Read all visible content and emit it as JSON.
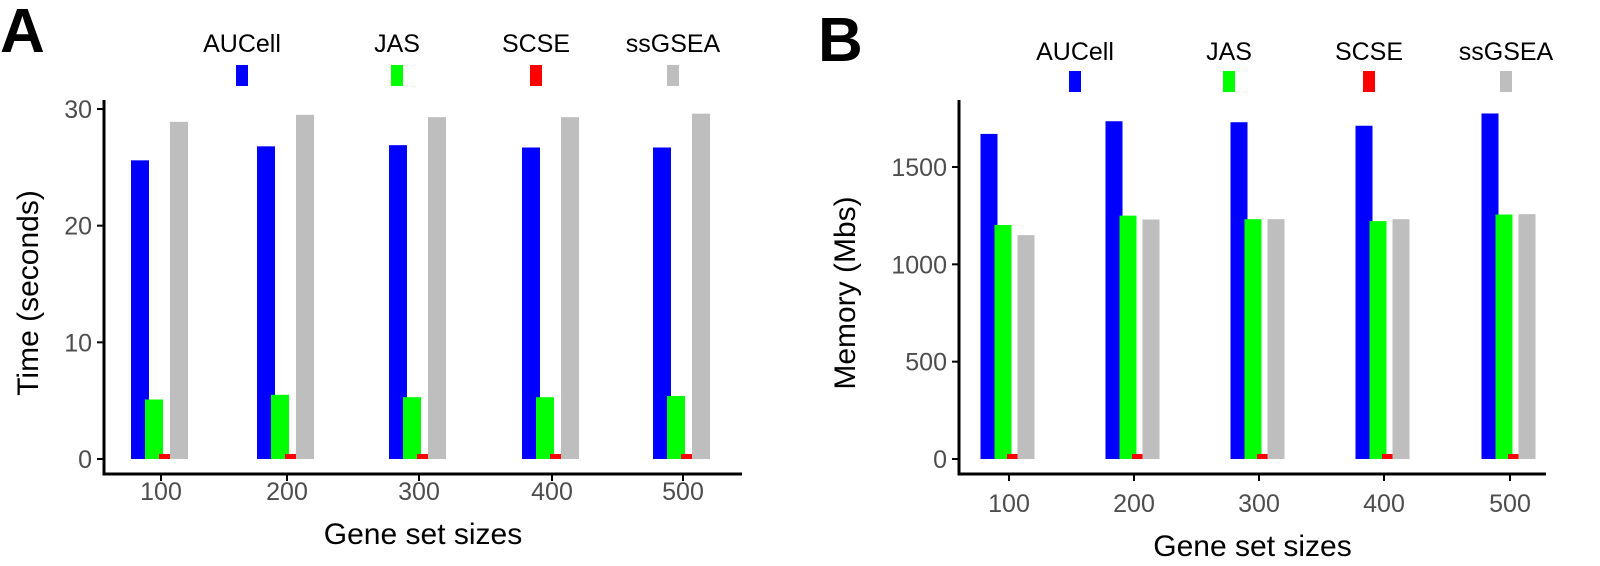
{
  "chart_data": [
    {
      "type": "bar",
      "panel_label": "A",
      "categories": [
        "100",
        "200",
        "300",
        "400",
        "500"
      ],
      "series": [
        {
          "name": "AUCell",
          "color": "#0000ff",
          "values": [
            25.6,
            26.8,
            26.9,
            26.7,
            26.7
          ]
        },
        {
          "name": "JAS",
          "color": "#00ff00",
          "values": [
            5.1,
            5.5,
            5.3,
            5.3,
            5.4
          ]
        },
        {
          "name": "SCSE",
          "color": "#ff0000",
          "values": [
            0.3,
            0.3,
            0.3,
            0.3,
            0.3
          ]
        },
        {
          "name": "ssGSEA",
          "color": "#bebebe",
          "values": [
            28.9,
            29.5,
            29.3,
            29.3,
            29.6
          ]
        }
      ],
      "title": "",
      "xlabel": "Gene set sizes",
      "ylabel": "Time (seconds)",
      "ylim": [
        0,
        30
      ],
      "yticks": [
        "0",
        "10",
        "20",
        "30"
      ],
      "legend": "top",
      "grid": false
    },
    {
      "type": "bar",
      "panel_label": "B",
      "categories": [
        "100",
        "200",
        "300",
        "400",
        "500"
      ],
      "series": [
        {
          "name": "AUCell",
          "color": "#0000ff",
          "values": [
            1670,
            1735,
            1730,
            1712,
            1775
          ]
        },
        {
          "name": "JAS",
          "color": "#00ff00",
          "values": [
            1202,
            1250,
            1232,
            1222,
            1256
          ]
        },
        {
          "name": "SCSE",
          "color": "#ff0000",
          "values": [
            18,
            19,
            19,
            20,
            21
          ]
        },
        {
          "name": "ssGSEA",
          "color": "#bebebe",
          "values": [
            1150,
            1230,
            1232,
            1232,
            1258
          ]
        }
      ],
      "title": "",
      "xlabel": "Gene set sizes",
      "ylabel": "Memory (Mbs)",
      "ylim": [
        0,
        1800
      ],
      "yticks": [
        "0",
        "500",
        "1000",
        "1500"
      ],
      "legend": "top",
      "grid": false
    }
  ]
}
